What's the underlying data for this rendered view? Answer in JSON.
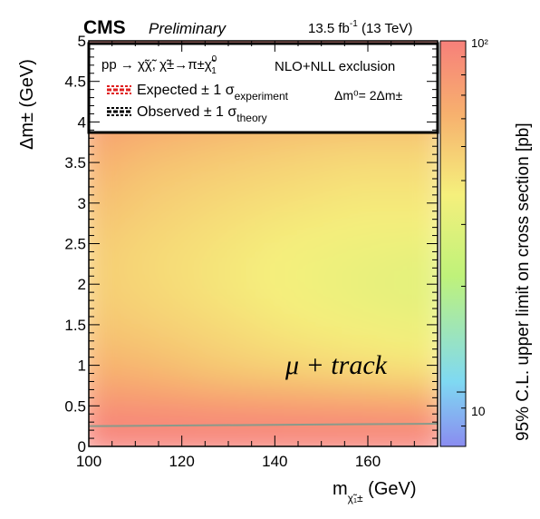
{
  "header": {
    "experiment": "CMS",
    "status": "Preliminary",
    "lumi": "13.5 fb",
    "lumi_exp": "-1",
    "energy": "(13 TeV)"
  },
  "legend": {
    "process": "pp → χ̃χ̃, χ̃±→π±χ̃",
    "process_sup": "0",
    "process_sub": "1",
    "exclusion": "NLO+NLL exclusion",
    "expected": "Expected ± 1 σ",
    "expected_sub": "experiment",
    "observed": "Observed ± 1 σ",
    "observed_sub": "theory",
    "relation": "Δm⁰= 2Δm±"
  },
  "annotation": "μ + track",
  "chart_data": {
    "type": "heatmap",
    "xlabel": "m",
    "xlabel_sub": "χ̃₁±",
    "xlabel_unit": "(GeV)",
    "ylabel": "Δm± (GeV)",
    "zlabel": "95% C.L. upper limit on cross section [pb]",
    "xlim": [
      100,
      175
    ],
    "ylim": [
      0,
      5
    ],
    "zlim": [
      7,
      100
    ],
    "zscale": "log",
    "x_ticks": [
      100,
      120,
      140,
      160
    ],
    "y_ticks": [
      0,
      0.5,
      1,
      1.5,
      2,
      2.5,
      3,
      3.5,
      4,
      4.5,
      5
    ],
    "y_tick_labels": [
      "0",
      "0.5",
      "1",
      "1.5",
      "2",
      "2.5",
      "3",
      "3.5",
      "4",
      "4.5",
      "5"
    ],
    "z_tick_labels": [
      "10",
      "10²"
    ],
    "x_samples": [
      100,
      115,
      130,
      145,
      160,
      175
    ],
    "y_samples": [
      0,
      0.25,
      0.5,
      1,
      1.5,
      2,
      2.5,
      3,
      3.5,
      4,
      5
    ],
    "z_values": [
      [
        100,
        100,
        100,
        100,
        100,
        100
      ],
      [
        100,
        100,
        100,
        100,
        100,
        100
      ],
      [
        90,
        88,
        86,
        84,
        82,
        80
      ],
      [
        65,
        60,
        52,
        48,
        45,
        42
      ],
      [
        55,
        50,
        45,
        40,
        37,
        34
      ],
      [
        50,
        45,
        40,
        36,
        32,
        30
      ],
      [
        50,
        44,
        40,
        36,
        33,
        31
      ],
      [
        55,
        48,
        43,
        40,
        38,
        38
      ],
      [
        62,
        52,
        48,
        45,
        42,
        42
      ],
      [
        72,
        62,
        56,
        52,
        50,
        50
      ],
      [
        100,
        100,
        100,
        100,
        100,
        100
      ]
    ],
    "observed_limit": {
      "x": [
        100,
        175
      ],
      "y": [
        0.25,
        0.28
      ]
    },
    "legend_placement": "top"
  }
}
